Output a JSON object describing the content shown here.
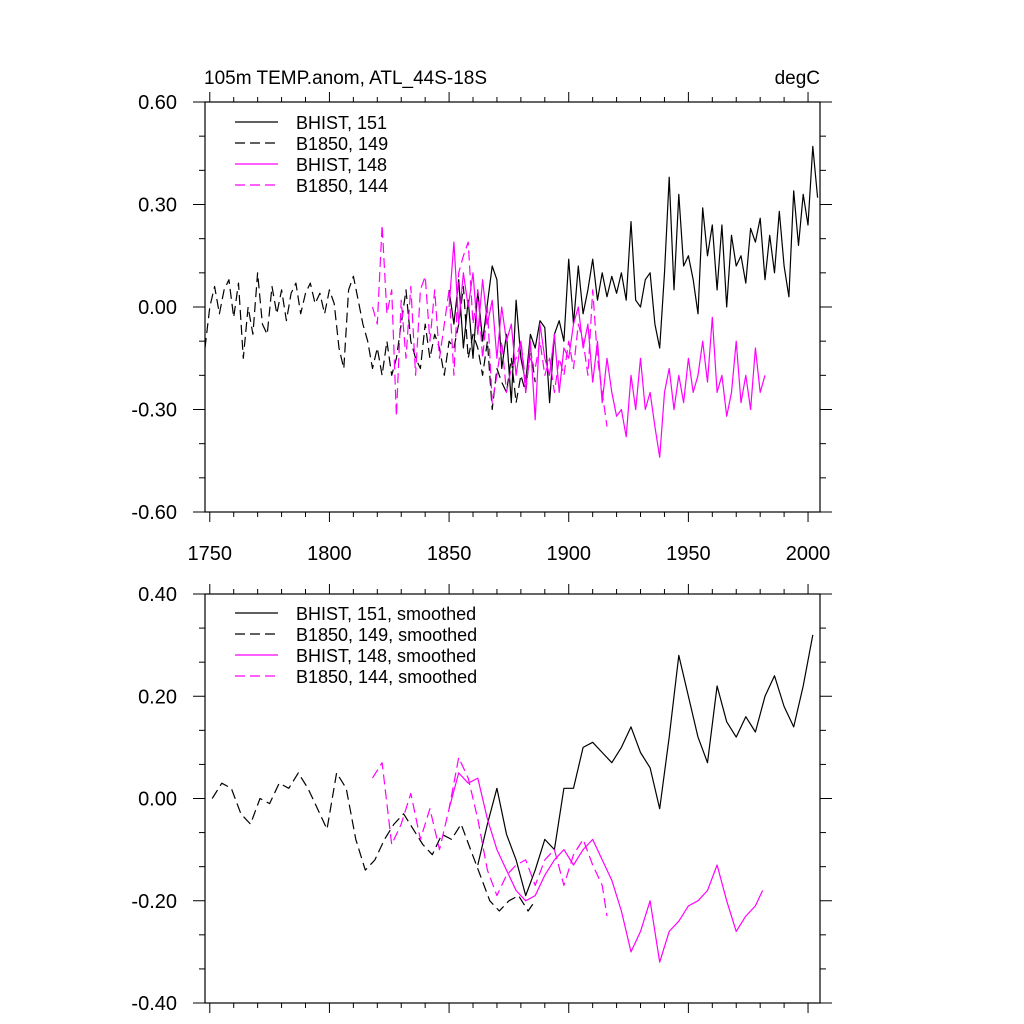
{
  "figure": {
    "title": "105m TEMP.anom, ATL_44S-18S",
    "units": "degC"
  },
  "colors": {
    "black": "#000000",
    "magenta": "#ff00ff"
  },
  "chart_data": [
    {
      "type": "line",
      "panel": "top",
      "xlim": [
        1748,
        2005
      ],
      "ylim": [
        -0.6,
        0.6
      ],
      "xticks": [
        1750,
        1800,
        1850,
        1900,
        1950,
        2000
      ],
      "xtick_labels": [
        "1750",
        "1800",
        "1850",
        "1900",
        "1950",
        "2000"
      ],
      "yticks": [
        -0.6,
        -0.3,
        0.0,
        0.3,
        0.6
      ],
      "ytick_labels": [
        "-0.60",
        "-0.30",
        "0.00",
        "0.30",
        "0.60"
      ],
      "legend_position": "top-left",
      "series": [
        {
          "name": "BHIST, 151",
          "color": "#000000",
          "dash": "solid",
          "x": [
            1850,
            1852,
            1854,
            1856,
            1858,
            1860,
            1862,
            1864,
            1866,
            1868,
            1870,
            1872,
            1874,
            1876,
            1878,
            1880,
            1882,
            1884,
            1886,
            1888,
            1890,
            1892,
            1894,
            1896,
            1898,
            1900,
            1902,
            1904,
            1906,
            1908,
            1910,
            1912,
            1914,
            1916,
            1918,
            1920,
            1922,
            1924,
            1926,
            1928,
            1930,
            1932,
            1934,
            1936,
            1938,
            1940,
            1942,
            1944,
            1946,
            1948,
            1950,
            1952,
            1954,
            1956,
            1958,
            1960,
            1962,
            1964,
            1966,
            1968,
            1970,
            1972,
            1974,
            1976,
            1978,
            1980,
            1982,
            1984,
            1986,
            1988,
            1990,
            1992,
            1994,
            1996,
            1998,
            2000,
            2002,
            2004
          ],
          "y": [
            0.05,
            -0.05,
            0.08,
            -0.12,
            0.02,
            -0.15,
            0.05,
            -0.1,
            0.01,
            0.12,
            0.08,
            -0.18,
            -0.08,
            -0.28,
            0.02,
            -0.15,
            -0.22,
            -0.08,
            -0.12,
            -0.04,
            -0.06,
            -0.28,
            -0.08,
            -0.04,
            -0.1,
            0.14,
            -0.05,
            0.12,
            -0.02,
            0.05,
            0.14,
            0.02,
            0.1,
            0.03,
            0.09,
            0.04,
            0.1,
            0.02,
            0.25,
            0.02,
            0.0,
            0.08,
            0.1,
            -0.05,
            -0.12,
            0.1,
            0.38,
            0.05,
            0.33,
            0.12,
            0.15,
            0.08,
            -0.02,
            0.29,
            0.15,
            0.24,
            0.05,
            0.24,
            0.0,
            0.21,
            0.12,
            0.15,
            0.07,
            0.23,
            0.19,
            0.26,
            0.08,
            0.21,
            0.1,
            0.28,
            0.12,
            0.03,
            0.34,
            0.18,
            0.33,
            0.24,
            0.47,
            0.32
          ]
        },
        {
          "name": "B1850, 149",
          "color": "#000000",
          "dash": "dashed",
          "x": [
            1748,
            1750,
            1752,
            1754,
            1756,
            1758,
            1760,
            1762,
            1764,
            1766,
            1768,
            1770,
            1772,
            1774,
            1776,
            1778,
            1780,
            1782,
            1784,
            1786,
            1788,
            1790,
            1792,
            1794,
            1796,
            1798,
            1800,
            1802,
            1804,
            1806,
            1808,
            1810,
            1812,
            1814,
            1816,
            1818,
            1820,
            1822,
            1824,
            1826,
            1828,
            1830,
            1832,
            1834,
            1836,
            1838,
            1840,
            1842,
            1844,
            1846,
            1848,
            1850,
            1852,
            1854,
            1856,
            1858,
            1860,
            1862,
            1864,
            1866,
            1868,
            1870,
            1872,
            1874,
            1876,
            1878,
            1880,
            1882,
            1884,
            1886
          ],
          "y": [
            -0.12,
            0.0,
            0.06,
            -0.02,
            0.05,
            0.08,
            -0.03,
            0.07,
            -0.15,
            0.0,
            -0.08,
            0.1,
            -0.05,
            -0.08,
            0.06,
            -0.02,
            0.05,
            -0.04,
            0.04,
            0.07,
            -0.02,
            0.04,
            0.07,
            0.01,
            0.04,
            -0.02,
            0.05,
            0.01,
            -0.12,
            -0.18,
            0.05,
            0.09,
            0.02,
            -0.05,
            -0.1,
            -0.18,
            -0.12,
            -0.2,
            -0.1,
            -0.2,
            -0.15,
            -0.05,
            0.05,
            -0.1,
            -0.15,
            -0.18,
            -0.05,
            -0.15,
            -0.08,
            -0.12,
            -0.2,
            -0.1,
            -0.12,
            -0.05,
            0.06,
            -0.15,
            -0.08,
            -0.12,
            -0.2,
            -0.1,
            -0.3,
            -0.18,
            -0.22,
            -0.25,
            -0.15,
            -0.28,
            -0.2,
            -0.25,
            -0.12,
            -0.22
          ]
        },
        {
          "name": "BHIST, 148",
          "color": "#ff00ff",
          "dash": "solid",
          "x": [
            1850,
            1852,
            1854,
            1856,
            1858,
            1860,
            1862,
            1864,
            1866,
            1868,
            1870,
            1872,
            1874,
            1876,
            1878,
            1880,
            1882,
            1884,
            1886,
            1888,
            1890,
            1892,
            1894,
            1896,
            1898,
            1900,
            1902,
            1904,
            1906,
            1908,
            1910,
            1912,
            1914,
            1916,
            1918,
            1920,
            1922,
            1924,
            1926,
            1928,
            1930,
            1932,
            1934,
            1936,
            1938,
            1940,
            1942,
            1944,
            1946,
            1948,
            1950,
            1952,
            1954,
            1956,
            1958,
            1960,
            1962,
            1964,
            1966,
            1968,
            1970,
            1972,
            1974,
            1976,
            1978,
            1980,
            1982
          ],
          "y": [
            0.0,
            0.19,
            -0.05,
            0.1,
            0.0,
            0.1,
            -0.08,
            0.08,
            -0.05,
            0.02,
            -0.15,
            0.0,
            -0.1,
            -0.05,
            -0.2,
            -0.1,
            -0.25,
            -0.1,
            -0.33,
            -0.05,
            -0.15,
            -0.2,
            -0.08,
            -0.25,
            -0.12,
            -0.15,
            -0.05,
            0.0,
            -0.12,
            -0.05,
            -0.22,
            -0.1,
            -0.28,
            -0.15,
            -0.25,
            -0.32,
            -0.3,
            -0.38,
            -0.2,
            -0.3,
            -0.15,
            -0.3,
            -0.25,
            -0.35,
            -0.44,
            -0.25,
            -0.18,
            -0.3,
            -0.2,
            -0.28,
            -0.15,
            -0.25,
            -0.2,
            -0.1,
            -0.22,
            -0.03,
            -0.25,
            -0.2,
            -0.32,
            -0.25,
            -0.1,
            -0.28,
            -0.2,
            -0.3,
            -0.12,
            -0.25,
            -0.2
          ]
        },
        {
          "name": "B1850, 144",
          "color": "#ff00ff",
          "dash": "dashed",
          "x": [
            1818,
            1820,
            1822,
            1824,
            1826,
            1828,
            1830,
            1832,
            1834,
            1836,
            1838,
            1840,
            1842,
            1844,
            1846,
            1848,
            1850,
            1852,
            1854,
            1856,
            1858,
            1860,
            1862,
            1864,
            1866,
            1868,
            1870,
            1872,
            1874,
            1876,
            1878,
            1880,
            1882,
            1884,
            1886,
            1888,
            1890,
            1892,
            1894,
            1896,
            1898,
            1900,
            1902,
            1904,
            1906,
            1908,
            1910,
            1912,
            1914,
            1916
          ],
          "y": [
            0.0,
            -0.05,
            0.24,
            -0.02,
            0.05,
            -0.32,
            0.02,
            -0.15,
            0.06,
            -0.2,
            0.05,
            0.09,
            -0.1,
            0.05,
            -0.15,
            -0.05,
            0.05,
            -0.2,
            0.1,
            0.15,
            0.19,
            -0.05,
            0.05,
            -0.15,
            0.0,
            -0.28,
            -0.2,
            -0.1,
            -0.25,
            -0.18,
            -0.15,
            -0.1,
            -0.22,
            -0.15,
            -0.18,
            -0.1,
            -0.2,
            -0.15,
            -0.25,
            -0.15,
            -0.2,
            -0.1,
            -0.18,
            -0.05,
            -0.1,
            -0.2,
            0.05,
            -0.15,
            -0.25,
            -0.35
          ]
        }
      ]
    },
    {
      "type": "line",
      "panel": "bottom",
      "xlim": [
        1748,
        2005
      ],
      "ylim": [
        -0.4,
        0.4
      ],
      "yticks": [
        -0.4,
        -0.2,
        0.0,
        0.2,
        0.4
      ],
      "ytick_labels": [
        "-0.40",
        "-0.20",
        "0.00",
        "0.20",
        "0.40"
      ],
      "legend_position": "top-left",
      "series": [
        {
          "name": "BHIST, 151, smoothed",
          "color": "#000000",
          "dash": "solid",
          "x": [
            1862,
            1866,
            1870,
            1874,
            1878,
            1882,
            1886,
            1890,
            1894,
            1898,
            1902,
            1906,
            1910,
            1914,
            1918,
            1922,
            1926,
            1930,
            1934,
            1938,
            1942,
            1946,
            1950,
            1954,
            1958,
            1962,
            1966,
            1970,
            1974,
            1978,
            1982,
            1986,
            1990,
            1994,
            1998,
            2002
          ],
          "y": [
            -0.13,
            -0.05,
            0.02,
            -0.07,
            -0.12,
            -0.19,
            -0.14,
            -0.08,
            -0.1,
            0.02,
            0.02,
            0.1,
            0.11,
            0.09,
            0.07,
            0.1,
            0.14,
            0.09,
            0.06,
            -0.02,
            0.12,
            0.28,
            0.2,
            0.12,
            0.07,
            0.22,
            0.15,
            0.12,
            0.16,
            0.13,
            0.2,
            0.24,
            0.18,
            0.14,
            0.22,
            0.32
          ]
        },
        {
          "name": "B1850, 149, smoothed",
          "color": "#000000",
          "dash": "dashed",
          "x": [
            1751,
            1755,
            1759,
            1763,
            1767,
            1771,
            1775,
            1779,
            1783,
            1787,
            1791,
            1795,
            1799,
            1803,
            1807,
            1811,
            1815,
            1819,
            1823,
            1827,
            1831,
            1835,
            1839,
            1843,
            1847,
            1851,
            1855,
            1859,
            1863,
            1867,
            1871,
            1875,
            1879,
            1883,
            1886
          ],
          "y": [
            0.0,
            0.03,
            0.02,
            -0.03,
            -0.05,
            0.0,
            -0.01,
            0.03,
            0.02,
            0.05,
            0.02,
            -0.02,
            -0.06,
            0.05,
            0.02,
            -0.08,
            -0.14,
            -0.12,
            -0.08,
            -0.05,
            -0.03,
            -0.06,
            -0.09,
            -0.11,
            -0.07,
            -0.08,
            -0.05,
            -0.1,
            -0.15,
            -0.2,
            -0.22,
            -0.2,
            -0.19,
            -0.22,
            -0.2
          ]
        },
        {
          "name": "BHIST, 148, smoothed",
          "color": "#ff00ff",
          "dash": "solid",
          "x": [
            1850,
            1854,
            1858,
            1862,
            1866,
            1870,
            1874,
            1878,
            1882,
            1886,
            1890,
            1894,
            1898,
            1902,
            1906,
            1910,
            1914,
            1918,
            1922,
            1926,
            1930,
            1934,
            1938,
            1942,
            1946,
            1950,
            1954,
            1958,
            1962,
            1966,
            1970,
            1974,
            1978,
            1981
          ],
          "y": [
            -0.02,
            0.05,
            0.03,
            0.04,
            -0.04,
            -0.1,
            -0.14,
            -0.18,
            -0.2,
            -0.19,
            -0.15,
            -0.12,
            -0.1,
            -0.13,
            -0.1,
            -0.08,
            -0.12,
            -0.16,
            -0.22,
            -0.3,
            -0.26,
            -0.2,
            -0.32,
            -0.26,
            -0.24,
            -0.21,
            -0.2,
            -0.18,
            -0.13,
            -0.2,
            -0.26,
            -0.23,
            -0.21,
            -0.18
          ]
        },
        {
          "name": "B1850, 144, smoothed",
          "color": "#ff00ff",
          "dash": "dashed",
          "x": [
            1818,
            1822,
            1826,
            1830,
            1834,
            1838,
            1842,
            1846,
            1850,
            1854,
            1858,
            1862,
            1866,
            1870,
            1874,
            1878,
            1882,
            1886,
            1890,
            1894,
            1898,
            1902,
            1906,
            1910,
            1914,
            1916
          ],
          "y": [
            0.04,
            0.07,
            -0.09,
            -0.05,
            0.01,
            -0.08,
            -0.02,
            -0.1,
            -0.02,
            0.08,
            0.04,
            -0.04,
            -0.14,
            -0.19,
            -0.15,
            -0.13,
            -0.12,
            -0.17,
            -0.12,
            -0.1,
            -0.17,
            -0.11,
            -0.08,
            -0.13,
            -0.17,
            -0.23
          ]
        }
      ]
    }
  ]
}
